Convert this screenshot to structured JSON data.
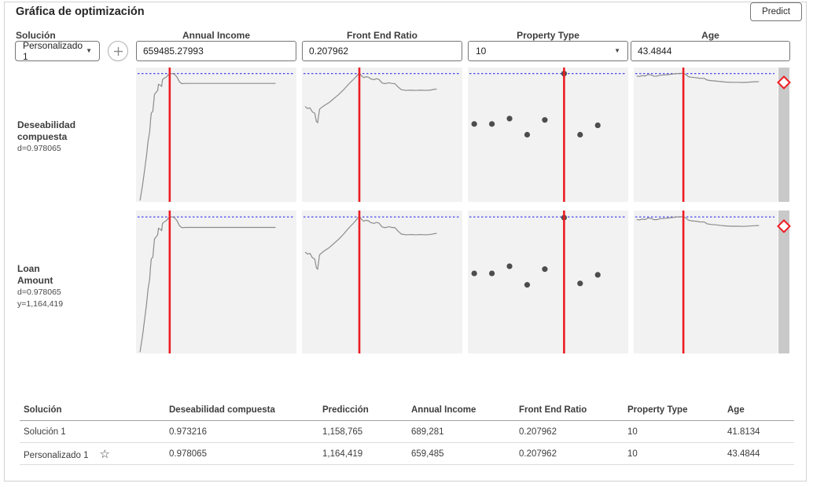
{
  "header": {
    "title": "Gráfica de optimización",
    "predict_label": "Predict"
  },
  "controls": {
    "solution_label": "Solución",
    "solution_value": "Personalizado 1",
    "factors": [
      {
        "label": "Annual Income",
        "value": "659485.27993"
      },
      {
        "label": "Front End Ratio",
        "value": "0.207962"
      },
      {
        "label": "Property Type",
        "value": "10"
      },
      {
        "label": "Age",
        "value": "43.4844"
      }
    ]
  },
  "responses": [
    {
      "line1": "Deseabilidad",
      "line2": "compuesta",
      "stat1": "d=0.978065",
      "stat2": ""
    },
    {
      "line1": "Loan",
      "line2": "Amount",
      "stat1": "d=0.978065",
      "stat2": "y=1,164,419"
    }
  ],
  "colors": {
    "accent_red": "#ed1c24",
    "target_blue": "#3333ee",
    "curve_gray": "#8c8c8c",
    "dot_gray": "#4d4d4d",
    "plot_bg": "#f2f2f2",
    "strip_gray": "#c9c9c9"
  },
  "chart_data": {
    "type": "line",
    "blue_target_y": 4.5,
    "red_positions_pct": [
      21,
      35.8,
      60,
      34.5
    ],
    "curves": {
      "annual_income": [
        [
          2.5,
          99
        ],
        [
          4,
          88
        ],
        [
          5.5,
          75
        ],
        [
          6.5,
          66
        ],
        [
          7.5,
          55
        ],
        [
          8.5,
          48
        ],
        [
          9,
          40
        ],
        [
          9.5,
          34
        ],
        [
          10.5,
          32.5
        ],
        [
          11,
          26
        ],
        [
          11.5,
          20
        ],
        [
          12.5,
          18.5
        ],
        [
          13.5,
          17
        ],
        [
          14,
          12.5
        ],
        [
          15,
          13
        ],
        [
          16,
          14
        ],
        [
          16.5,
          9
        ],
        [
          17.5,
          8
        ],
        [
          19,
          7
        ],
        [
          20,
          5.5
        ],
        [
          21,
          4.5
        ],
        [
          22.5,
          4.5
        ],
        [
          24,
          5
        ],
        [
          25.5,
          7
        ],
        [
          27,
          10.5
        ],
        [
          28.5,
          12
        ],
        [
          31,
          11.8
        ],
        [
          87,
          11.8
        ]
      ],
      "front_end_ratio": [
        [
          2,
          29
        ],
        [
          3.5,
          30.5
        ],
        [
          5,
          30
        ],
        [
          6.5,
          33
        ],
        [
          8,
          34
        ],
        [
          9,
          40
        ],
        [
          9.8,
          41
        ],
        [
          11,
          31
        ],
        [
          13,
          29
        ],
        [
          15,
          27.5
        ],
        [
          17,
          26
        ],
        [
          20,
          23
        ],
        [
          23,
          20
        ],
        [
          26,
          16.5
        ],
        [
          29,
          12.5
        ],
        [
          32,
          9
        ],
        [
          34,
          6.5
        ],
        [
          35.8,
          3.8
        ],
        [
          37,
          6
        ],
        [
          38.5,
          7.5
        ],
        [
          40,
          6.8
        ],
        [
          41.5,
          7.2
        ],
        [
          43,
          8.5
        ],
        [
          45,
          9
        ],
        [
          46.5,
          8.3
        ],
        [
          48,
          8.8
        ],
        [
          50,
          11.5
        ],
        [
          52,
          12
        ],
        [
          54,
          11.3
        ],
        [
          56,
          11.8
        ],
        [
          58,
          12
        ],
        [
          60,
          14.5
        ],
        [
          62,
          16.5
        ],
        [
          65,
          17
        ],
        [
          68,
          16.8
        ],
        [
          71,
          17
        ],
        [
          74,
          16.8
        ],
        [
          77,
          17
        ],
        [
          80,
          16.8
        ],
        [
          82,
          16.3
        ],
        [
          84,
          16
        ]
      ],
      "age": [
        [
          2,
          6.3
        ],
        [
          4,
          6.6
        ],
        [
          6,
          6
        ],
        [
          8,
          6.3
        ],
        [
          10,
          5.2
        ],
        [
          12,
          5.5
        ],
        [
          14,
          6.4
        ],
        [
          16,
          6.4
        ],
        [
          18,
          5.8
        ],
        [
          20,
          5.6
        ],
        [
          23,
          5.4
        ],
        [
          26,
          5
        ],
        [
          29,
          4.6
        ],
        [
          32,
          4.4
        ],
        [
          34.5,
          4.3
        ],
        [
          36,
          5
        ],
        [
          38,
          6.8
        ],
        [
          40,
          7.2
        ],
        [
          43,
          7.5
        ],
        [
          46,
          8
        ],
        [
          49,
          8
        ],
        [
          51,
          9.3
        ],
        [
          54,
          9.8
        ],
        [
          57,
          10
        ],
        [
          60,
          10.4
        ],
        [
          64,
          10.8
        ],
        [
          68,
          11
        ],
        [
          72,
          11
        ],
        [
          76,
          11.1
        ],
        [
          80,
          10.9
        ],
        [
          84,
          10.6
        ],
        [
          87,
          10.5
        ]
      ]
    },
    "scatter": {
      "property_type_row1": [
        [
          4,
          42
        ],
        [
          15,
          42
        ],
        [
          26,
          38
        ],
        [
          37,
          50
        ],
        [
          48,
          39
        ],
        [
          60,
          4.5
        ],
        [
          70,
          50
        ],
        [
          81,
          43
        ]
      ],
      "property_type_row2": [
        [
          4,
          44
        ],
        [
          15,
          44
        ],
        [
          26,
          39
        ],
        [
          37,
          52
        ],
        [
          48,
          41
        ],
        [
          60,
          5
        ],
        [
          70,
          51
        ],
        [
          81,
          45
        ]
      ]
    },
    "grid": [
      [
        "annual_income",
        "front_end_ratio",
        "scatter:property_type_row1",
        "age"
      ],
      [
        "annual_income",
        "front_end_ratio",
        "scatter:property_type_row2",
        "age"
      ]
    ]
  },
  "table": {
    "headers": [
      "Solución",
      "Deseabilidad compuesta",
      "Predicción",
      "Annual Income",
      "Front End Ratio",
      "Property Type",
      "Age"
    ],
    "star_icon": "☆",
    "rows": [
      {
        "cells": [
          "Solución 1",
          "0.973216",
          "1,158,765",
          "689,281",
          "0.207962",
          "10",
          "41.8134"
        ],
        "starred": false
      },
      {
        "cells": [
          "Personalizado 1",
          "0.978065",
          "1,164,419",
          "659,485",
          "0.207962",
          "10",
          "43.4844"
        ],
        "starred": true
      }
    ]
  }
}
